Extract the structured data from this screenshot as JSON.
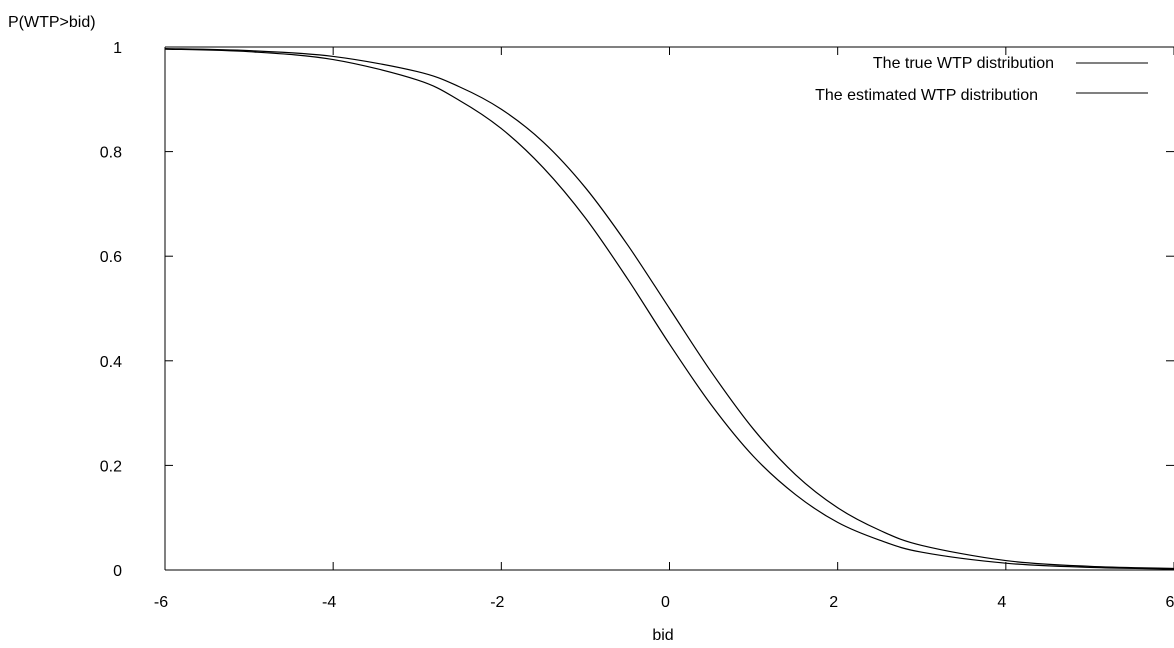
{
  "chart_data": {
    "type": "line",
    "title": "",
    "xlabel": "bid",
    "ylabel": "P(WTP>bid)",
    "xlim": [
      -6,
      6
    ],
    "ylim": [
      0,
      1
    ],
    "xticks": [
      -6,
      -4,
      -2,
      0,
      2,
      4,
      6
    ],
    "yticks": [
      0,
      0.2,
      0.4,
      0.6,
      0.8,
      1
    ],
    "xtick_labels": [
      "-6",
      "-4",
      "-2",
      "0",
      "2",
      "4",
      "6"
    ],
    "ytick_labels": [
      "0",
      "0.2",
      "0.4",
      "0.6",
      "0.8",
      "1"
    ],
    "grid": false,
    "legend_position": "top-right",
    "x": [
      -6,
      -5,
      -4,
      -3,
      -2.5,
      -2,
      -1.5,
      -1,
      -0.5,
      0,
      0.5,
      1,
      1.5,
      2,
      2.5,
      3,
      4,
      5,
      6
    ],
    "series": [
      {
        "name": "The true WTP distribution",
        "values": [
          0.997,
          0.993,
          0.982,
          0.953,
          0.924,
          0.881,
          0.818,
          0.731,
          0.622,
          0.5,
          0.378,
          0.269,
          0.182,
          0.119,
          0.076,
          0.047,
          0.018,
          0.007,
          0.003
        ]
      },
      {
        "name": "The estimated WTP distribution",
        "values": [
          0.996,
          0.991,
          0.976,
          0.937,
          0.898,
          0.844,
          0.769,
          0.673,
          0.557,
          0.432,
          0.315,
          0.217,
          0.144,
          0.091,
          0.057,
          0.034,
          0.013,
          0.005,
          0.002
        ]
      }
    ]
  }
}
